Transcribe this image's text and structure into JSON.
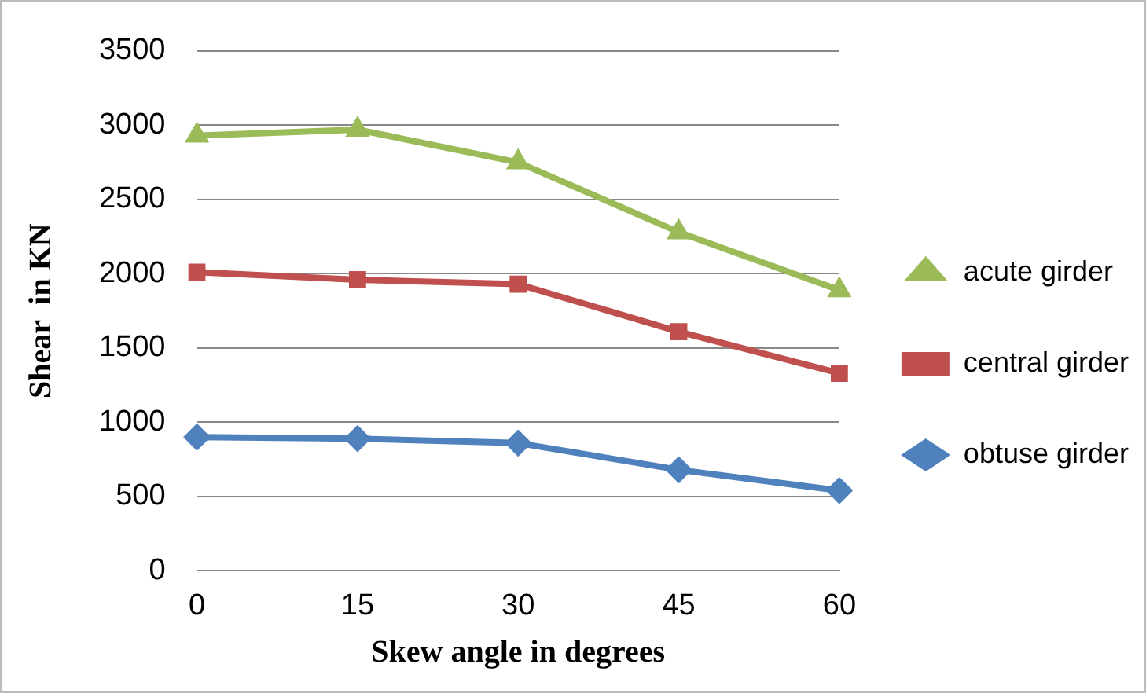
{
  "chart_data": {
    "type": "line",
    "xlabel": "Skew angle in degrees",
    "ylabel": "Shear  in KN",
    "categories": [
      "0",
      "15",
      "30",
      "45",
      "60"
    ],
    "series": [
      {
        "name": "acute girder",
        "color": "#9bbb59",
        "marker": "triangle",
        "values": [
          2930,
          2970,
          2750,
          2280,
          1890
        ]
      },
      {
        "name": "central girder",
        "color": "#c0504d",
        "marker": "square",
        "values": [
          2010,
          1960,
          1930,
          1610,
          1330
        ]
      },
      {
        "name": "obtuse girder",
        "color": "#4f81bd",
        "marker": "diamond",
        "values": [
          900,
          890,
          860,
          680,
          540
        ]
      }
    ],
    "ylim": [
      0,
      3500
    ],
    "yticks": [
      0,
      500,
      1000,
      1500,
      2000,
      2500,
      3000,
      3500
    ],
    "grid": "y",
    "legend": "right"
  }
}
